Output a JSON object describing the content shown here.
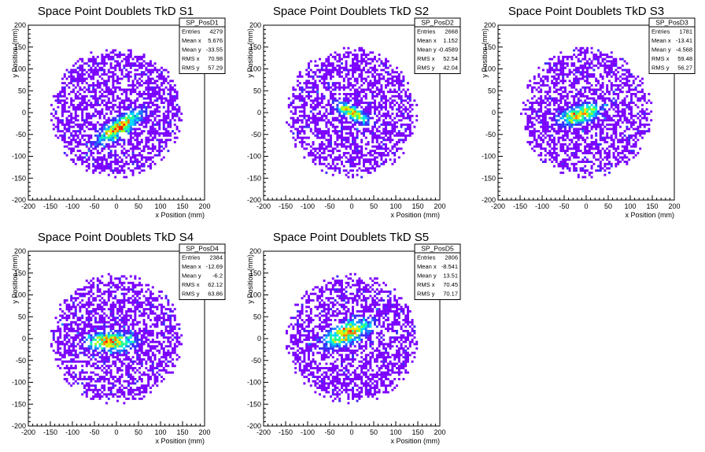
{
  "chart_data": [
    {
      "type": "heatmap",
      "title": "Space Point Doublets TkD S1",
      "xlabel": "x Position (mm)",
      "ylabel": "y Position (mm)",
      "xlim": [
        -200,
        200
      ],
      "ylim": [
        -200,
        200
      ],
      "xticks": [
        -200,
        -150,
        -100,
        -50,
        0,
        50,
        100,
        150,
        200
      ],
      "yticks": [
        -200,
        -150,
        -100,
        -50,
        0,
        50,
        100,
        150,
        200
      ],
      "stats": {
        "name": "SP_PosD1",
        "rows": [
          [
            "Entries",
            "4279"
          ],
          [
            "Mean x",
            "5.676"
          ],
          [
            "Mean y",
            "-33.55"
          ],
          [
            "RMS x",
            "70.98"
          ],
          [
            "RMS y",
            "57.29"
          ]
        ]
      },
      "hotspot": {
        "x": 5.676,
        "y": -33.55,
        "rms_x": 70.98,
        "rms_y": 57.29,
        "tilt": 0.6
      },
      "occupied_radius": 150
    },
    {
      "type": "heatmap",
      "title": "Space Point Doublets TkD S2",
      "xlabel": "x Position (mm)",
      "ylabel": "y Position (mm)",
      "xlim": [
        -200,
        200
      ],
      "ylim": [
        -200,
        200
      ],
      "xticks": [
        -200,
        -150,
        -100,
        -50,
        0,
        50,
        100,
        150,
        200
      ],
      "yticks": [
        -200,
        -150,
        -100,
        -50,
        0,
        50,
        100,
        150,
        200
      ],
      "stats": {
        "name": "SP_PosD2",
        "rows": [
          [
            "Entries",
            "2668"
          ],
          [
            "Mean x",
            "1.152"
          ],
          [
            "Mean y",
            "-0.4589"
          ],
          [
            "RMS x",
            "52.54"
          ],
          [
            "RMS y",
            "42.04"
          ]
        ]
      },
      "hotspot": {
        "x": 1.152,
        "y": -0.4589,
        "rms_x": 52.54,
        "rms_y": 42.04,
        "tilt": -0.5
      },
      "occupied_radius": 150
    },
    {
      "type": "heatmap",
      "title": "Space Point Doublets TkD S3",
      "xlabel": "x Position (mm)",
      "ylabel": "y Position (mm)",
      "xlim": [
        -200,
        200
      ],
      "ylim": [
        -200,
        200
      ],
      "xticks": [
        -200,
        -150,
        -100,
        -50,
        0,
        50,
        100,
        150,
        200
      ],
      "yticks": [
        -200,
        -150,
        -100,
        -50,
        0,
        50,
        100,
        150,
        200
      ],
      "stats": {
        "name": "SP_PosD3",
        "rows": [
          [
            "Entries",
            "1781"
          ],
          [
            "Mean x",
            "-13.41"
          ],
          [
            "Mean y",
            "-4.568"
          ],
          [
            "RMS x",
            "59.48"
          ],
          [
            "RMS y",
            "56.27"
          ]
        ]
      },
      "hotspot": {
        "x": -13.41,
        "y": -4.568,
        "rms_x": 59.48,
        "rms_y": 56.27,
        "tilt": 0.3
      },
      "occupied_radius": 150
    },
    {
      "type": "heatmap",
      "title": "Space Point Doublets TkD S4",
      "xlabel": "x Position (mm)",
      "ylabel": "y Position (mm)",
      "xlim": [
        -200,
        200
      ],
      "ylim": [
        -200,
        200
      ],
      "xticks": [
        -200,
        -150,
        -100,
        -50,
        0,
        50,
        100,
        150,
        200
      ],
      "yticks": [
        -200,
        -150,
        -100,
        -50,
        0,
        50,
        100,
        150,
        200
      ],
      "stats": {
        "name": "SP_PosD4",
        "rows": [
          [
            "Entries",
            "2384"
          ],
          [
            "Mean x",
            "-12.69"
          ],
          [
            "Mean y",
            "-6.2"
          ],
          [
            "RMS x",
            "62.12"
          ],
          [
            "RMS y",
            "63.86"
          ]
        ]
      },
      "hotspot": {
        "x": -12.69,
        "y": -6.2,
        "rms_x": 62.12,
        "rms_y": 63.86,
        "tilt": 0.0
      },
      "occupied_radius": 150
    },
    {
      "type": "heatmap",
      "title": "Space Point Doublets TkD S5",
      "xlabel": "x Position (mm)",
      "ylabel": "y Position (mm)",
      "xlim": [
        -200,
        200
      ],
      "ylim": [
        -200,
        200
      ],
      "xticks": [
        -200,
        -150,
        -100,
        -50,
        0,
        50,
        100,
        150,
        200
      ],
      "yticks": [
        -200,
        -150,
        -100,
        -50,
        0,
        50,
        100,
        150,
        200
      ],
      "stats": {
        "name": "SP_PosD5",
        "rows": [
          [
            "Entries",
            "2806"
          ],
          [
            "Mean x",
            "-8.541"
          ],
          [
            "Mean y",
            "13.51"
          ],
          [
            "RMS x",
            "70.45"
          ],
          [
            "RMS y",
            "70.17"
          ]
        ]
      },
      "hotspot": {
        "x": -8.541,
        "y": 13.51,
        "rms_x": 70.45,
        "rms_y": 70.17,
        "tilt": 0.4
      },
      "occupied_radius": 150
    }
  ],
  "palette": [
    "#7a00ff",
    "#3c28ff",
    "#1a7cff",
    "#00d8ff",
    "#1cff9a",
    "#a8ff1c",
    "#ffe600",
    "#ff8000",
    "#ff1e00"
  ]
}
